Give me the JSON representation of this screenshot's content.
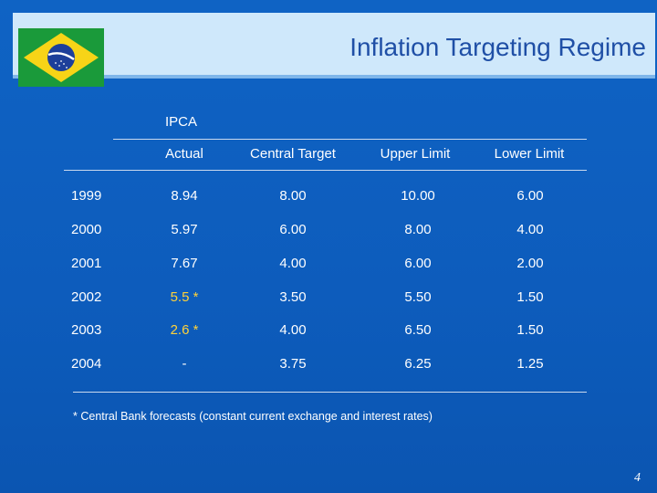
{
  "title": "Inflation Targeting Regime",
  "group_label": "IPCA",
  "columns": [
    "Actual",
    "Central Target",
    "Upper Limit",
    "Lower Limit"
  ],
  "rows": [
    {
      "year": "1999",
      "actual": "8.94",
      "target": "8.00",
      "upper": "10.00",
      "lower": "6.00"
    },
    {
      "year": "2000",
      "actual": "5.97",
      "target": "6.00",
      "upper": "8.00",
      "lower": "4.00"
    },
    {
      "year": "2001",
      "actual": "7.67",
      "target": "4.00",
      "upper": "6.00",
      "lower": "2.00"
    },
    {
      "year": "2002",
      "actual": "5.5 *",
      "target": "3.50",
      "upper": "5.50",
      "lower": "1.50"
    },
    {
      "year": "2003",
      "actual": "2.6 *",
      "target": "4.00",
      "upper": "6.50",
      "lower": "1.50"
    },
    {
      "year": "2004",
      "actual": "-",
      "target": "3.75",
      "upper": "6.25",
      "lower": "1.25"
    }
  ],
  "footnote": "* Central Bank forecasts (constant current exchange and interest rates)",
  "page_number": "4",
  "colors": {
    "background": "#0d5cbc",
    "header_band": "#cfe8fb",
    "title": "#1f4fa6",
    "forecast": "#ffd23a"
  },
  "icons": {
    "flag": "brazil-flag-icon"
  }
}
